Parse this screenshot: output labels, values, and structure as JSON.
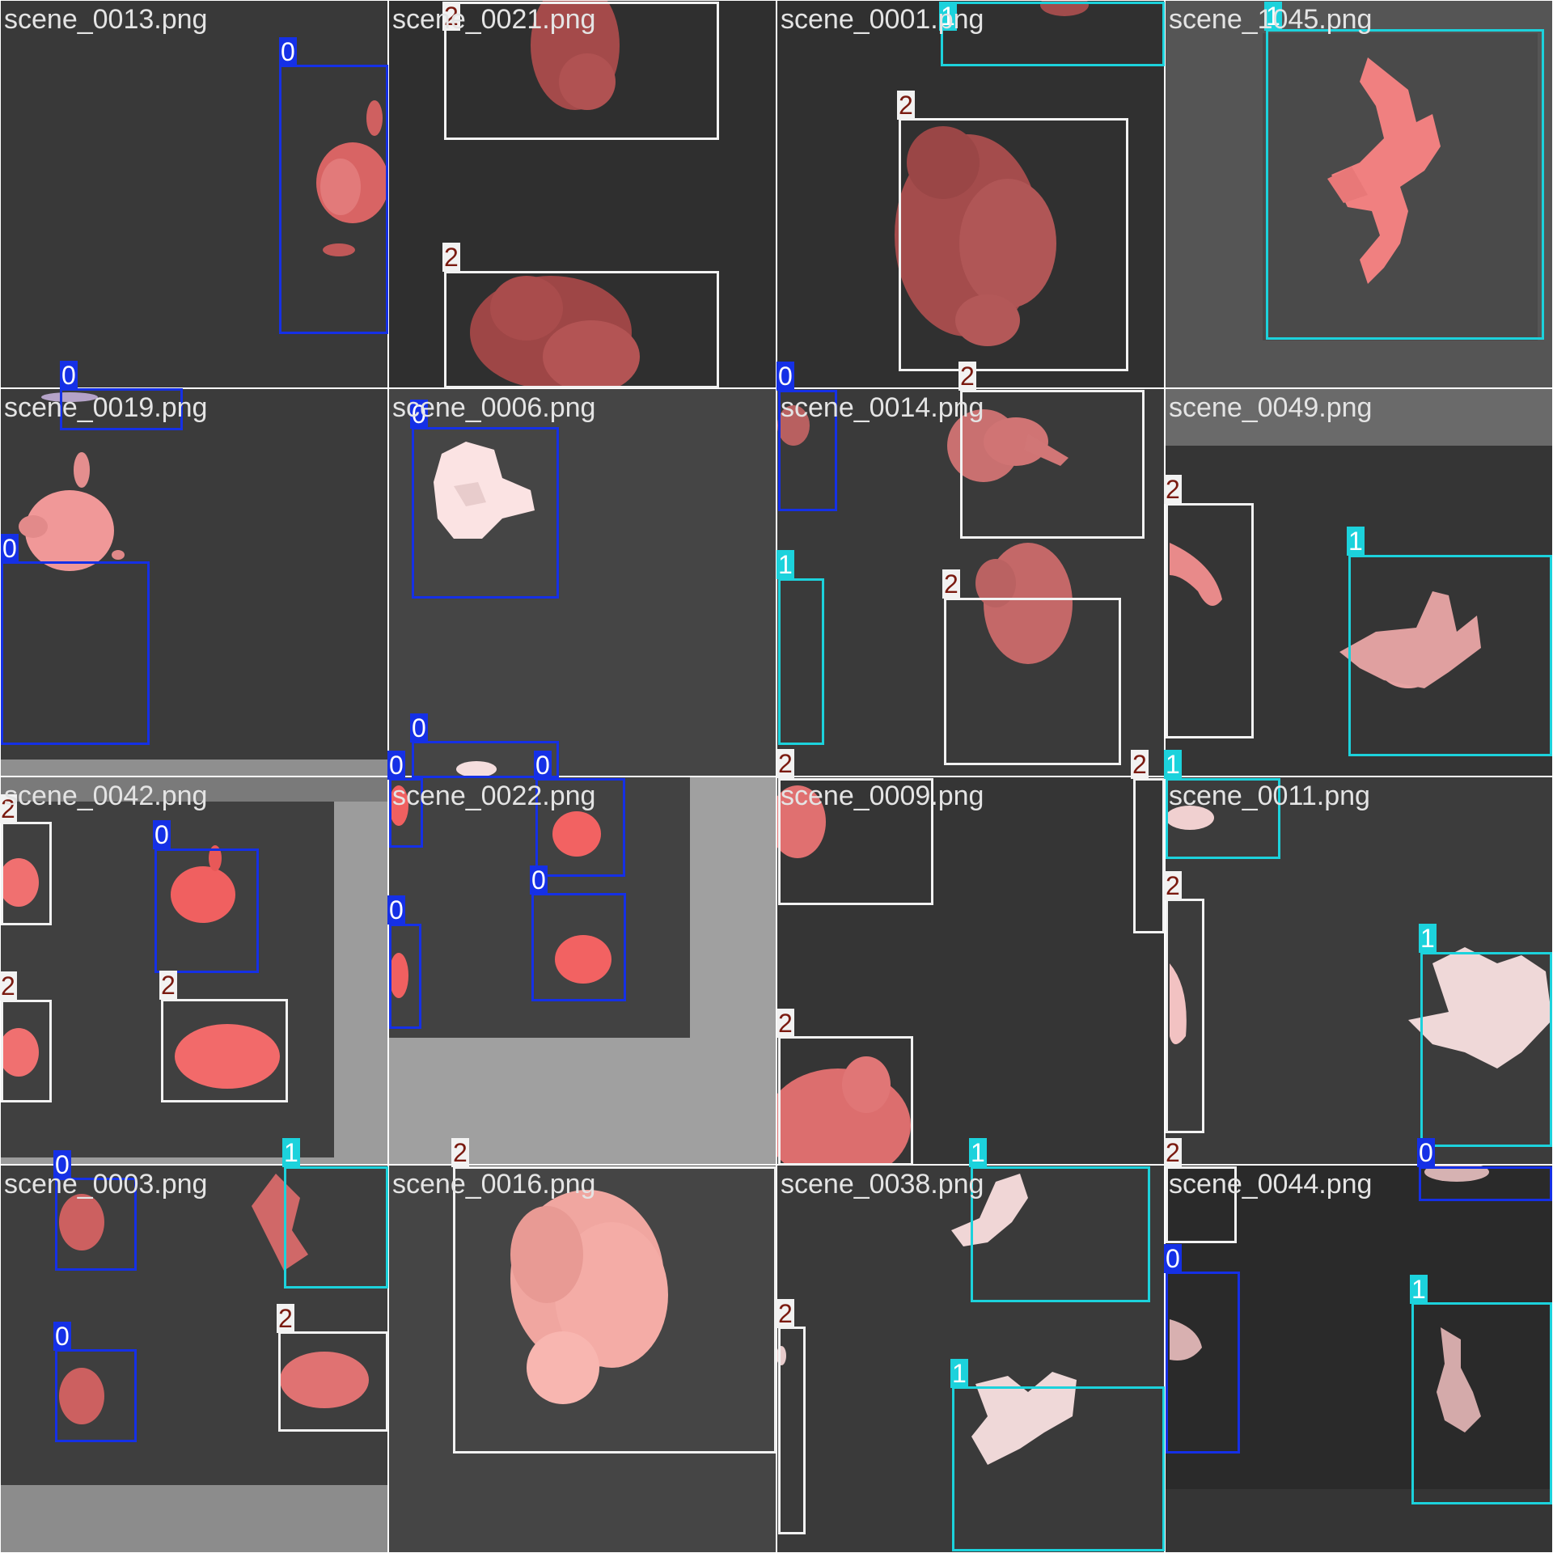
{
  "colors": {
    "class_0": "#1530e6",
    "class_1": "#1cd2dc",
    "class_2": "#f2f2f2",
    "tag_0_text": "#ffffff",
    "tag_1_text": "#ffffff",
    "tag_2_text": "#7a1a10",
    "object_red": "#e06a6a",
    "object_pink": "#f0c0c0",
    "background_dark": "#3a3a3a",
    "background_grey": "#9e9e9e"
  },
  "tiles": [
    {
      "filename": "scene_0013.png"
    },
    {
      "filename": "scene_0021.png"
    },
    {
      "filename": "scene_0001.png"
    },
    {
      "filename": "scene_1045.png"
    },
    {
      "filename": "scene_0019.png"
    },
    {
      "filename": "scene_0006.png"
    },
    {
      "filename": "scene_0014.png"
    },
    {
      "filename": "scene_0049.png"
    },
    {
      "filename": "scene_0042.png"
    },
    {
      "filename": "scene_0022.png"
    },
    {
      "filename": "scene_0009.png"
    },
    {
      "filename": "scene_0011.png"
    },
    {
      "filename": "scene_0003.png"
    },
    {
      "filename": "scene_0016.png"
    },
    {
      "filename": "scene_0038.png"
    },
    {
      "filename": "scene_0044.png"
    }
  ],
  "detections": [
    {
      "cls": "0"
    },
    {
      "cls": "0"
    },
    {
      "cls": "2"
    },
    {
      "cls": "2"
    },
    {
      "cls": "1"
    },
    {
      "cls": "2"
    },
    {
      "cls": "1"
    },
    {
      "cls": "0"
    },
    {
      "cls": "0"
    },
    {
      "cls": "0"
    },
    {
      "cls": "0"
    },
    {
      "cls": "2"
    },
    {
      "cls": "1"
    },
    {
      "cls": "2"
    },
    {
      "cls": "2"
    },
    {
      "cls": "2"
    },
    {
      "cls": "1"
    },
    {
      "cls": "2"
    },
    {
      "cls": "0"
    },
    {
      "cls": "2"
    },
    {
      "cls": "2"
    },
    {
      "cls": "0"
    },
    {
      "cls": "0"
    },
    {
      "cls": "0"
    },
    {
      "cls": "0"
    },
    {
      "cls": "2"
    },
    {
      "cls": "2"
    },
    {
      "cls": "1"
    },
    {
      "cls": "2"
    },
    {
      "cls": "1"
    },
    {
      "cls": "0"
    },
    {
      "cls": "1"
    },
    {
      "cls": "0"
    },
    {
      "cls": "2"
    },
    {
      "cls": "2"
    },
    {
      "cls": "1"
    },
    {
      "cls": "2"
    },
    {
      "cls": "1"
    },
    {
      "cls": "2"
    },
    {
      "cls": "0"
    },
    {
      "cls": "0"
    },
    {
      "cls": "1"
    }
  ]
}
